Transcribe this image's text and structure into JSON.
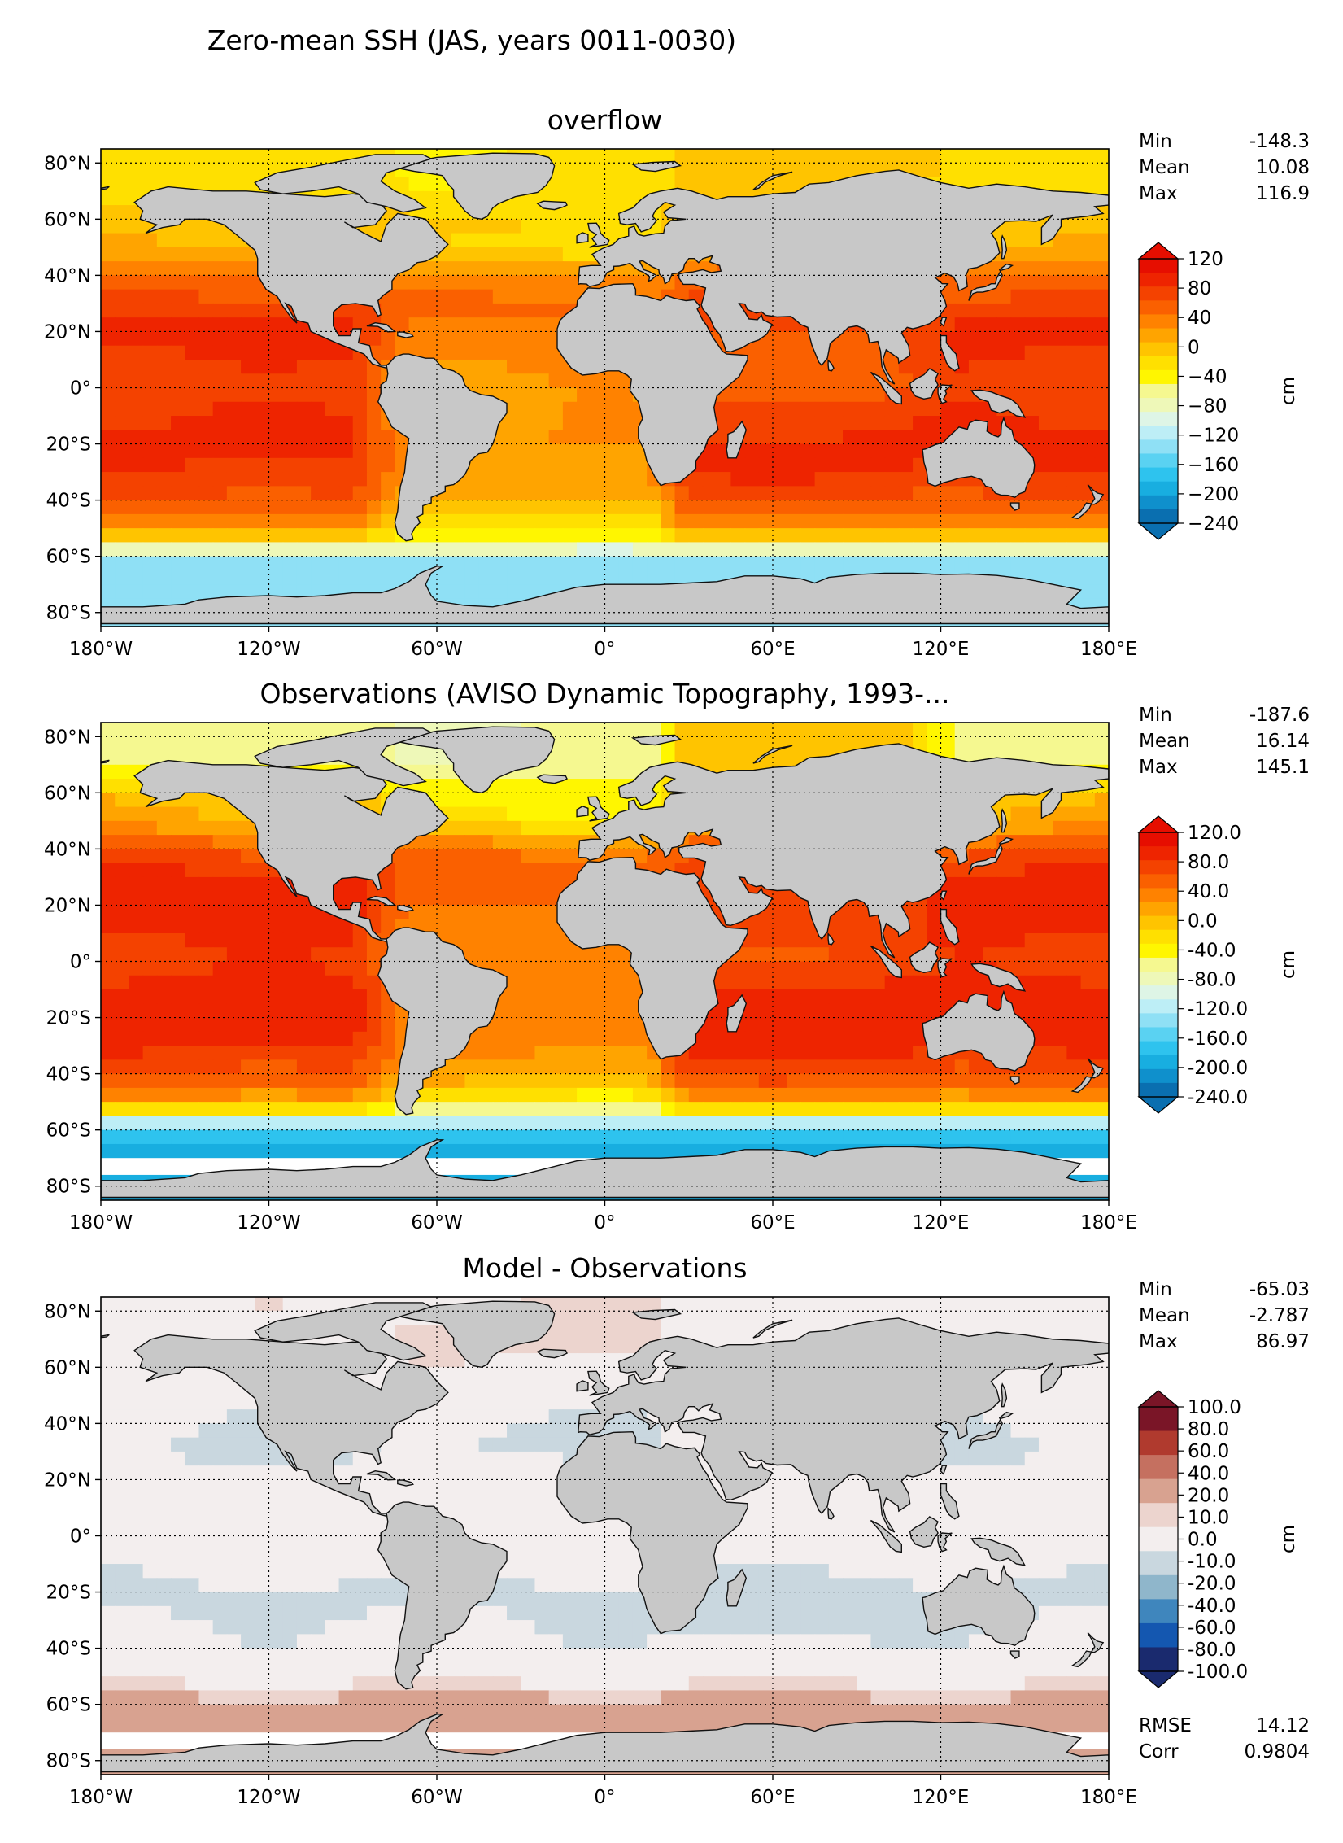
{
  "figure_title": "Zero-mean SSH (JAS, years 0011-0030)",
  "lon_ticks": [
    "180°W",
    "120°W",
    "60°W",
    "0°",
    "60°E",
    "120°E",
    "180°E"
  ],
  "lat_ticks": [
    "80°N",
    "60°N",
    "40°N",
    "20°N",
    "0°",
    "20°S",
    "40°S",
    "60°S",
    "80°S"
  ],
  "chart_data": [
    {
      "type": "heatmap",
      "title": "overflow",
      "map": "global filled-contour map of zero-mean sea surface height",
      "xlim": [
        -180,
        180
      ],
      "ylim": [
        -85,
        85
      ],
      "stats": [
        {
          "label": "Min",
          "value": "-148.3"
        },
        {
          "label": "Mean",
          "value": "10.08"
        },
        {
          "label": "Max",
          "value": "116.9"
        }
      ],
      "colorbar": {
        "unit": "cm",
        "extend": "both",
        "tick_labels": [
          "120",
          "80",
          "40",
          "0",
          "−40",
          "−80",
          "−120",
          "−160",
          "−200",
          "−240"
        ],
        "range": [
          -240,
          120
        ],
        "colors": [
          "#0a6fb0",
          "#0f90cc",
          "#18aee0",
          "#2ec3ee",
          "#5ad2f2",
          "#8fe0f5",
          "#bdeef6",
          "#def5e6",
          "#eef8b8",
          "#f5f890",
          "#fff600",
          "#ffe000",
          "#ffc400",
          "#ffa400",
          "#ff8200",
          "#fa6000",
          "#f44200",
          "#ee2400",
          "#e60e00"
        ]
      },
      "zonal_profile_cm": {
        "lat": [
          80,
          70,
          60,
          50,
          40,
          30,
          20,
          10,
          0,
          -10,
          -20,
          -30,
          -40,
          -50,
          -55,
          -60,
          -65,
          -70,
          -78
        ],
        "pacific": [
          -25,
          -25,
          0,
          5,
          45,
          70,
          88,
          80,
          70,
          82,
          88,
          80,
          62,
          30,
          -40,
          -120,
          -135,
          -140,
          -140
        ],
        "atlantic": [
          -30,
          -30,
          -10,
          -20,
          25,
          48,
          40,
          28,
          20,
          22,
          25,
          20,
          10,
          -30,
          -60,
          -110,
          -130,
          -140,
          -140
        ],
        "indian": [
          0,
          0,
          0,
          0,
          55,
          70,
          62,
          60,
          55,
          75,
          85,
          85,
          62,
          30,
          -40,
          -120,
          -135,
          -140,
          -140
        ]
      }
    },
    {
      "type": "heatmap",
      "title": "Observations (AVISO Dynamic Topography, 1993-...",
      "map": "global filled-contour map of observed sea surface height",
      "xlim": [
        -180,
        180
      ],
      "ylim": [
        -85,
        85
      ],
      "stats": [
        {
          "label": "Min",
          "value": "-187.6"
        },
        {
          "label": "Mean",
          "value": "16.14"
        },
        {
          "label": "Max",
          "value": "145.1"
        }
      ],
      "colorbar": {
        "unit": "cm",
        "extend": "both",
        "tick_labels": [
          "120.0",
          "80.0",
          "40.0",
          "0.0",
          "-40.0",
          "-80.0",
          "-120.0",
          "-160.0",
          "-200.0",
          "-240.0"
        ],
        "range": [
          -240,
          120
        ],
        "colors": [
          "#0a6fb0",
          "#0f90cc",
          "#18aee0",
          "#2ec3ee",
          "#5ad2f2",
          "#8fe0f5",
          "#bdeef6",
          "#def5e6",
          "#eef8b8",
          "#f5f890",
          "#fff600",
          "#ffe000",
          "#ffc400",
          "#ffa400",
          "#ff8200",
          "#fa6000",
          "#f44200",
          "#ee2400",
          "#e60e00"
        ]
      },
      "zonal_profile_cm": {
        "lat": [
          80,
          70,
          60,
          50,
          40,
          30,
          20,
          10,
          0,
          -10,
          -20,
          -30,
          -40,
          -50,
          -55,
          -60,
          -65,
          -70,
          -78
        ],
        "pacific": [
          -60,
          -60,
          0,
          10,
          60,
          90,
          100,
          85,
          75,
          90,
          95,
          85,
          62,
          20,
          -70,
          -170,
          -185,
          -185,
          -185
        ],
        "atlantic": [
          -70,
          -70,
          -40,
          -30,
          40,
          58,
          45,
          35,
          30,
          32,
          35,
          30,
          15,
          -40,
          -80,
          -150,
          -180,
          -185,
          -185
        ],
        "indian": [
          0,
          0,
          0,
          0,
          60,
          75,
          70,
          70,
          65,
          85,
          100,
          95,
          70,
          20,
          -70,
          -170,
          -185,
          -185,
          -185
        ]
      }
    },
    {
      "type": "heatmap",
      "title": "Model - Observations",
      "map": "global filled-contour map of model minus observed sea surface height",
      "xlim": [
        -180,
        180
      ],
      "ylim": [
        -85,
        85
      ],
      "stats": [
        {
          "label": "Min",
          "value": "-65.03"
        },
        {
          "label": "Mean",
          "value": "-2.787"
        },
        {
          "label": "Max",
          "value": "86.97"
        }
      ],
      "extra_stats": [
        {
          "label": "RMSE",
          "value": "14.12"
        },
        {
          "label": "Corr",
          "value": "0.9804"
        }
      ],
      "colorbar": {
        "unit": "cm",
        "extend": "both",
        "tick_labels": [
          "100.0",
          "80.0",
          "60.0",
          "40.0",
          "20.0",
          "10.0",
          "0.0",
          "-10.0",
          "-20.0",
          "-40.0",
          "-60.0",
          "-80.0",
          "-100.0"
        ],
        "levels": [
          -100,
          -80,
          -60,
          -40,
          -20,
          -10,
          0,
          10,
          20,
          40,
          60,
          80,
          100
        ],
        "colors": [
          "#1a2a6e",
          "#1457b0",
          "#3f86bd",
          "#8fb6cb",
          "#c9d7df",
          "#f3eeee",
          "#ecd4ce",
          "#d8a290",
          "#c57060",
          "#b03a2e",
          "#7a1527"
        ]
      },
      "zonal_profile_cm": {
        "lat": [
          80,
          70,
          60,
          50,
          40,
          30,
          20,
          10,
          0,
          -10,
          -20,
          -30,
          -40,
          -50,
          -55,
          -60,
          -65,
          -70,
          -78
        ],
        "pacific": [
          5,
          5,
          2,
          0,
          -8,
          -12,
          -5,
          -2,
          0,
          -6,
          -12,
          -10,
          -4,
          6,
          14,
          28,
          36,
          25,
          25
        ],
        "atlantic": [
          10,
          15,
          6,
          2,
          -10,
          -14,
          8,
          3,
          1,
          -6,
          -12,
          -10,
          -5,
          6,
          14,
          30,
          38,
          25,
          25
        ],
        "indian": [
          0,
          0,
          0,
          0,
          5,
          8,
          4,
          2,
          0,
          -6,
          -14,
          -18,
          -6,
          6,
          14,
          28,
          36,
          25,
          25
        ]
      }
    }
  ]
}
